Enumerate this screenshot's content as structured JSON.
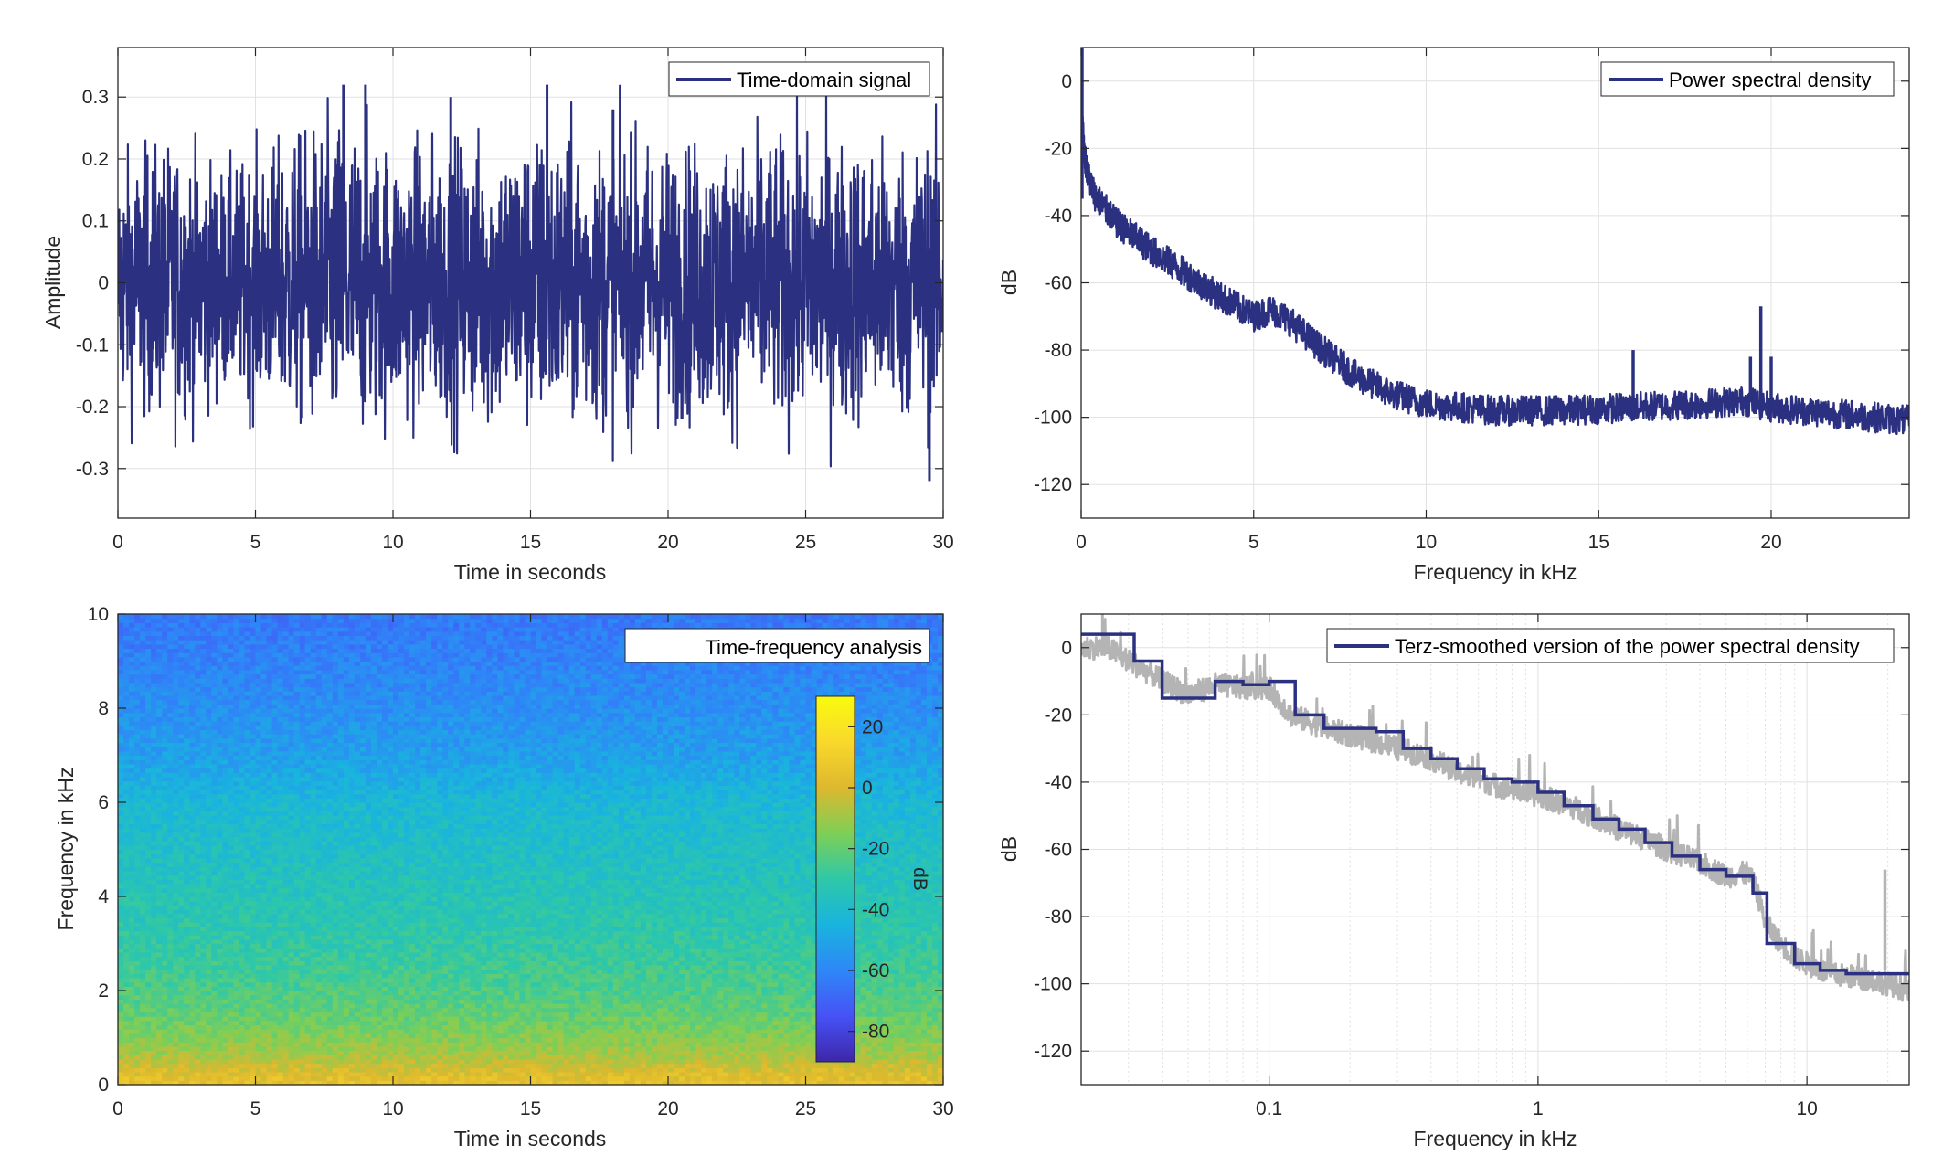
{
  "colors": {
    "series": "#2b3180",
    "raw": "#b4b4b4",
    "grid": "#e1e1e1",
    "axis": "#262626",
    "colormap": [
      "#3e26a8",
      "#4652f6",
      "#2e87f7",
      "#19b4de",
      "#2ec8a8",
      "#7ecf56",
      "#ddb82e",
      "#f9d82c",
      "#f9fb0e"
    ]
  },
  "chart_data": [
    {
      "id": "time-domain",
      "type": "line",
      "title": "",
      "xlabel": "Time in seconds",
      "ylabel": "Amplitude",
      "xlim": [
        0,
        30
      ],
      "ylim": [
        -0.38,
        0.38
      ],
      "xticks": [
        0,
        5,
        10,
        15,
        20,
        25,
        30
      ],
      "xticklabels": [
        "0",
        "5",
        "10",
        "15",
        "20",
        "25",
        "30"
      ],
      "yticks": [
        -0.3,
        -0.2,
        -0.1,
        0,
        0.1,
        0.2,
        0.3
      ],
      "yticklabels": [
        "-0.3",
        "-0.2",
        "-0.1",
        "0",
        "0.1",
        "0.2",
        "0.3"
      ],
      "grid": true,
      "legend": "top-right",
      "series": [
        {
          "name": "Time-domain signal",
          "style": "dense-noise",
          "envelope_t": [
            0,
            2,
            4,
            5,
            8,
            10,
            15,
            20,
            25,
            30
          ],
          "envelope_amp": [
            0.2,
            0.22,
            0.18,
            0.2,
            0.26,
            0.22,
            0.24,
            0.22,
            0.23,
            0.22
          ],
          "peaks_t": [
            8.2,
            9.0,
            12.1,
            15.6,
            18.0,
            29.5
          ],
          "peaks_v": [
            0.32,
            0.32,
            0.3,
            0.32,
            0.28,
            -0.32
          ]
        }
      ]
    },
    {
      "id": "psd",
      "type": "line",
      "title": "",
      "xlabel": "Frequency in kHz",
      "ylabel": "dB",
      "xlim": [
        0,
        24
      ],
      "ylim": [
        -130,
        10
      ],
      "xticks": [
        0,
        5,
        10,
        15,
        20
      ],
      "xticklabels": [
        "0",
        "5",
        "10",
        "15",
        "20"
      ],
      "yticks": [
        -120,
        -100,
        -80,
        -60,
        -40,
        -20,
        0
      ],
      "yticklabels": [
        "-120",
        "-100",
        "-80",
        "-60",
        "-40",
        "-20",
        "0"
      ],
      "grid": true,
      "legend": "top-right",
      "series": [
        {
          "name": "Power spectral density",
          "x": [
            0,
            0.05,
            0.1,
            0.2,
            0.4,
            1,
            2,
            3,
            4,
            5,
            5.5,
            6,
            7,
            8,
            9,
            10,
            12,
            14,
            16,
            18,
            19.2,
            20,
            22,
            24
          ],
          "y": [
            0,
            -15,
            -22,
            -28,
            -34,
            -42,
            -50,
            -57,
            -64,
            -70,
            -68,
            -71,
            -80,
            -88,
            -93,
            -96,
            -98,
            -98,
            -97,
            -96,
            -95,
            -97,
            -99,
            -101
          ],
          "spikes_x": [
            16.0,
            19.4,
            19.7,
            20.0
          ],
          "spikes_y": [
            -80,
            -82,
            -67,
            -82
          ]
        }
      ]
    },
    {
      "id": "spectrogram",
      "type": "heatmap",
      "title": "",
      "xlabel": "Time in seconds",
      "ylabel": "Frequency in kHz",
      "xlim": [
        0,
        30
      ],
      "ylim": [
        0,
        10
      ],
      "xticks": [
        0,
        5,
        10,
        15,
        20,
        25,
        30
      ],
      "xticklabels": [
        "0",
        "5",
        "10",
        "15",
        "20",
        "25",
        "30"
      ],
      "yticks": [
        0,
        2,
        4,
        6,
        8,
        10
      ],
      "yticklabels": [
        "0",
        "2",
        "4",
        "6",
        "8",
        "10"
      ],
      "legend": "top-right",
      "legend_label": "Time-frequency analysis",
      "colorbar": {
        "label": "dB",
        "range": [
          -90,
          30
        ],
        "ticks": [
          -80,
          -60,
          -40,
          -20,
          0,
          20
        ],
        "ticklabels": [
          "-80",
          "-60",
          "-40",
          "-20",
          "0",
          "20"
        ]
      },
      "profile_f": [
        0,
        0.3,
        0.6,
        1,
        1.5,
        2,
        3,
        4,
        5,
        6,
        6.5,
        7,
        8,
        9,
        10
      ],
      "profile_db": [
        5,
        0,
        -8,
        -14,
        -20,
        -24,
        -30,
        -34,
        -38,
        -42,
        -47,
        -52,
        -57,
        -61,
        -64
      ]
    },
    {
      "id": "terz",
      "type": "line",
      "title": "",
      "xlabel": "Frequency in kHz",
      "ylabel": "dB",
      "xscale": "log",
      "xlim": [
        0.02,
        24
      ],
      "ylim": [
        -130,
        10
      ],
      "xticks": [
        0.1,
        1,
        10
      ],
      "xticklabels": [
        "0.1",
        "1",
        "10"
      ],
      "yticks": [
        -120,
        -100,
        -80,
        -60,
        -40,
        -20,
        0
      ],
      "yticklabels": [
        "-120",
        "-100",
        "-80",
        "-60",
        "-40",
        "-20",
        "0"
      ],
      "grid": true,
      "legend": "top-right",
      "series": [
        {
          "name": "Terz-smoothed version of the power spectral density",
          "style": "step",
          "edges": [
            0.02,
            0.0315,
            0.04,
            0.05,
            0.063,
            0.08,
            0.1,
            0.125,
            0.16,
            0.2,
            0.25,
            0.315,
            0.4,
            0.5,
            0.63,
            0.8,
            1,
            1.25,
            1.6,
            2,
            2.5,
            3.15,
            4,
            5,
            6.3,
            7.1,
            9,
            11.2,
            14,
            24
          ],
          "levels": [
            4,
            -4,
            -15,
            -15,
            -10,
            -11,
            -10,
            -20,
            -24,
            -24,
            -25,
            -30,
            -33,
            -36,
            -39,
            -40,
            -43,
            -47,
            -51,
            -54,
            -58,
            -62,
            -66,
            -68,
            -73,
            -88,
            -94,
            -96,
            -97
          ]
        },
        {
          "name": "",
          "style": "raw",
          "x": [
            0.02,
            0.025,
            0.03,
            0.04,
            0.05,
            0.063,
            0.08,
            0.1,
            0.12,
            0.16,
            0.2,
            0.3,
            0.4,
            0.5,
            0.7,
            1,
            1.5,
            2,
            3,
            4,
            5,
            6,
            6.5,
            7,
            8,
            9,
            10,
            12,
            15,
            18,
            20,
            24
          ],
          "y": [
            0,
            0,
            -4,
            -10,
            -14,
            -11,
            -12,
            -12,
            -20,
            -24,
            -26,
            -30,
            -33,
            -37,
            -41,
            -44,
            -49,
            -54,
            -60,
            -64,
            -68,
            -67,
            -72,
            -82,
            -88,
            -92,
            -94,
            -97,
            -98,
            -99,
            -100,
            -102
          ]
        }
      ]
    }
  ]
}
